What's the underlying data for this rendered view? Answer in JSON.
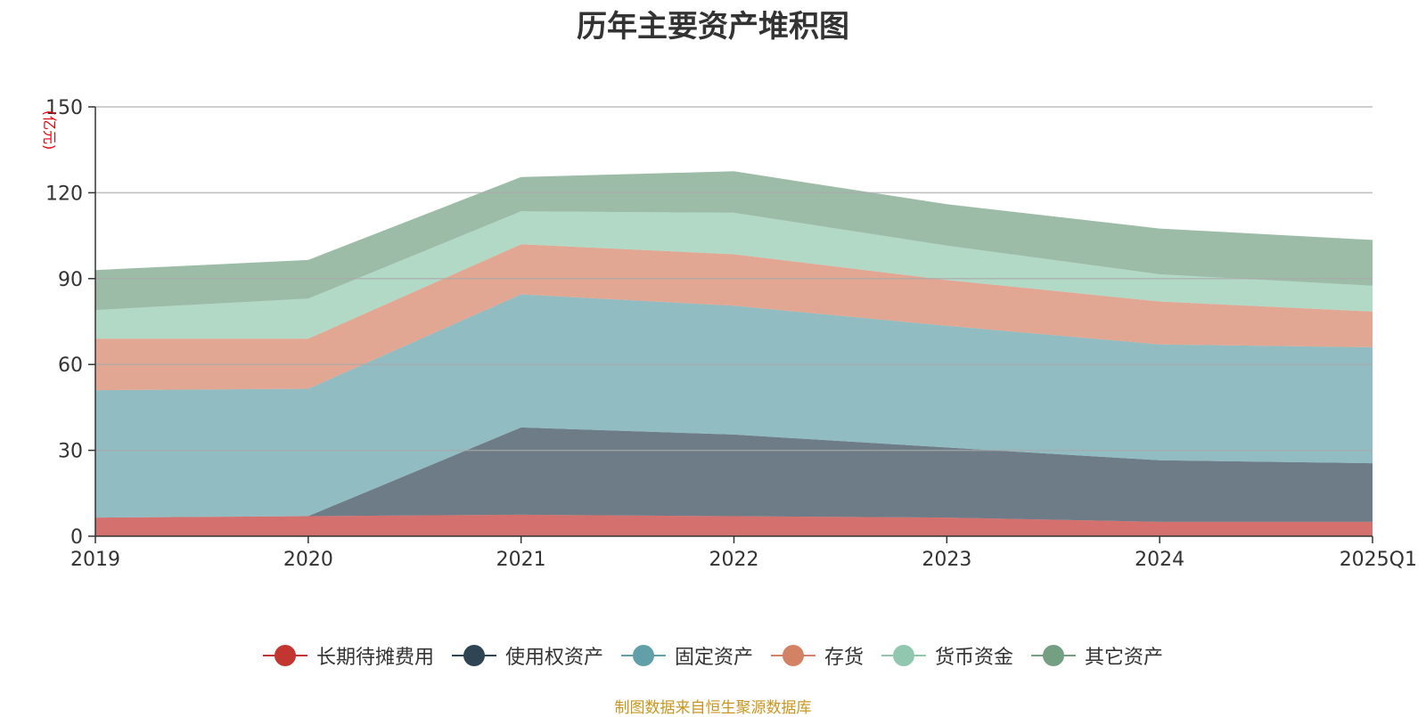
{
  "source_note": "制图数据来自恒生聚源数据库",
  "chart_data": {
    "type": "area",
    "stacked": true,
    "title": "历年主要资产堆积图",
    "ylabel": "(亿元)",
    "ylim": [
      0,
      150
    ],
    "yticks": [
      0,
      30,
      60,
      90,
      120,
      150
    ],
    "grid": true,
    "legend_position": "bottom-center",
    "categories": [
      "2019",
      "2020",
      "2021",
      "2022",
      "2023",
      "2024",
      "2025Q1"
    ],
    "series": [
      {
        "name": "长期待摊费用",
        "values": [
          6.5,
          7.0,
          7.5,
          7.0,
          6.5,
          5.0,
          5.0
        ],
        "color": "#c23531"
      },
      {
        "name": "使用权资产",
        "values": [
          0,
          0,
          30.5,
          28.5,
          24.5,
          21.5,
          20.5
        ],
        "color": "#2f4554"
      },
      {
        "name": "固定资产",
        "values": [
          44.5,
          44.5,
          46.5,
          45.0,
          42.5,
          40.5,
          40.5
        ],
        "color": "#61a0a8"
      },
      {
        "name": "存货",
        "values": [
          18.0,
          17.5,
          17.5,
          18.0,
          16.0,
          15.0,
          12.5
        ],
        "color": "#d48265"
      },
      {
        "name": "货币资金",
        "values": [
          10.0,
          14.0,
          11.5,
          14.5,
          12.0,
          9.5,
          9.0
        ],
        "color": "#91c7ae"
      },
      {
        "name": "其它资产",
        "values": [
          14.0,
          13.5,
          12.0,
          14.5,
          14.5,
          16.0,
          16.0
        ],
        "color": "#749f83"
      }
    ]
  }
}
